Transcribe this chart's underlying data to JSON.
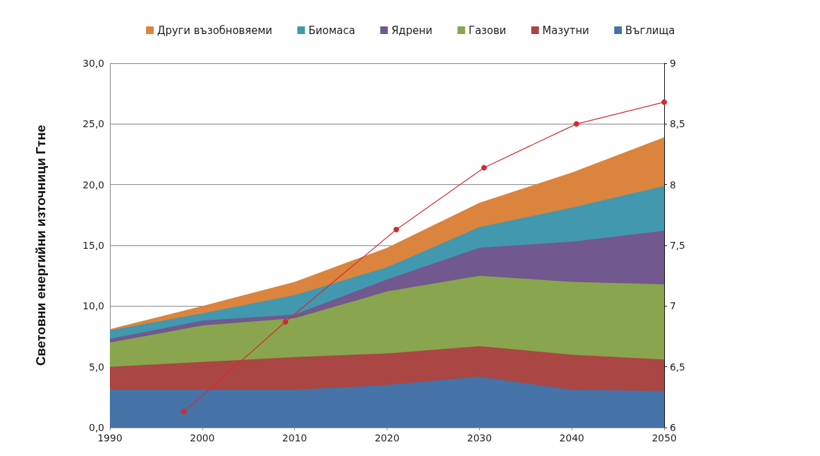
{
  "chart_data": {
    "type": "area",
    "stacked": true,
    "ylabel": "Световни енергийни източници Гтне",
    "x": [
      1990,
      2000,
      2010,
      2020,
      2030,
      2040,
      2050
    ],
    "xlim": [
      1990,
      2050
    ],
    "xticks": [
      1990,
      2000,
      2010,
      2020,
      2030,
      2040,
      2050
    ],
    "ylim": [
      0,
      30
    ],
    "yticks": [
      {
        "value": 0,
        "label": "0,0"
      },
      {
        "value": 5,
        "label": "5,0"
      },
      {
        "value": 10,
        "label": "10,0"
      },
      {
        "value": 15,
        "label": "15,0"
      },
      {
        "value": 20,
        "label": "20,0"
      },
      {
        "value": 25,
        "label": "25,0"
      },
      {
        "value": 30,
        "label": "30,0"
      }
    ],
    "y2lim": [
      6,
      9
    ],
    "y2ticks": [
      6,
      {
        "value": 6.5,
        "label": "6,5"
      },
      7,
      {
        "value": 7.5,
        "label": "7,5"
      },
      8,
      {
        "value": 8.5,
        "label": "8,5"
      },
      9
    ],
    "grid": "y",
    "legend": "top",
    "series": [
      {
        "name": "Въглища",
        "color": "#4572a7",
        "values": [
          3.1,
          3.1,
          3.1,
          3.5,
          4.2,
          3.1,
          3.0
        ]
      },
      {
        "name": "Мазутни",
        "color": "#aa4643",
        "values": [
          1.9,
          2.3,
          2.7,
          2.6,
          2.5,
          2.9,
          2.6
        ]
      },
      {
        "name": "Газови",
        "color": "#89a54e",
        "values": [
          2.0,
          3.0,
          3.2,
          5.1,
          5.8,
          6.0,
          6.2
        ]
      },
      {
        "name": "Ядрени",
        "color": "#71588f",
        "values": [
          0.3,
          0.4,
          0.3,
          1.0,
          2.3,
          3.3,
          4.4
        ]
      },
      {
        "name": "Биомаса",
        "color": "#4198af",
        "values": [
          0.7,
          0.6,
          1.6,
          1.0,
          1.7,
          2.8,
          3.7
        ]
      },
      {
        "name": "Други възобновяеми",
        "color": "#db843d",
        "values": [
          0.1,
          0.6,
          1.1,
          1.6,
          2.0,
          2.9,
          4.0
        ]
      },
      {
        "type": "line",
        "axis": "y2",
        "color": "#d42a30",
        "marker": "circle",
        "x": [
          1998,
          2009,
          2021,
          2030.5,
          2040.5,
          2050
        ],
        "values": [
          6.13,
          6.87,
          7.63,
          8.14,
          8.5,
          8.68
        ]
      }
    ]
  }
}
